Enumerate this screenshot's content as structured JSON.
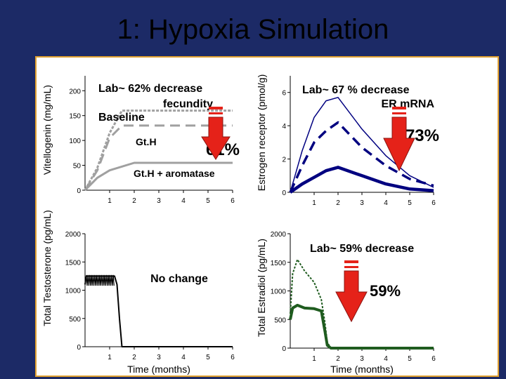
{
  "slide": {
    "title": "1: Hypoxia Simulation"
  },
  "colors": {
    "background": "#1c2a66",
    "panel_border": "#e0a030",
    "baseline": "#a0a0a0",
    "gth_aromatase": "#000080",
    "testosterone": "#000000",
    "estradiol": "#1f5c1f",
    "arrow": "#e52219"
  },
  "chart_data": [
    {
      "id": "vitellogenin",
      "type": "line",
      "ylabel": "Vitellogenin (mg/mL)",
      "xlabel": "",
      "x_ticks": [
        "1",
        "2",
        "3",
        "4",
        "5",
        "6"
      ],
      "y_ticks": [
        "0",
        "50",
        "100",
        "150",
        "200"
      ],
      "xlim": [
        0,
        6
      ],
      "ylim": [
        0,
        200
      ],
      "series": [
        {
          "name": "Baseline",
          "x": [
            0,
            0.5,
            1.0,
            1.5,
            6.0
          ],
          "y": [
            0,
            45,
            115,
            160,
            160
          ]
        },
        {
          "name": "Gt.H",
          "x": [
            0,
            0.5,
            1.0,
            1.5,
            6.0
          ],
          "y": [
            0,
            40,
            105,
            130,
            130
          ]
        },
        {
          "name": "Gt.H + aromatase",
          "x": [
            0,
            0.5,
            1.0,
            2.0,
            6.0
          ],
          "y": [
            0,
            25,
            40,
            55,
            55
          ]
        }
      ],
      "annotations": {
        "lab_line1": "Lab~ 62% decrease",
        "lab_line2": "fecundity",
        "percent": "61%"
      }
    },
    {
      "id": "estrogen_receptor",
      "type": "line",
      "ylabel": "Estrogen receptor (pmol/g)",
      "xlabel": "",
      "x_ticks": [
        "1",
        "2",
        "3",
        "4",
        "5",
        "6"
      ],
      "y_ticks": [
        "0",
        "2",
        "4",
        "6"
      ],
      "xlim": [
        0,
        6
      ],
      "ylim": [
        0,
        7
      ],
      "series": [
        {
          "name": "Baseline",
          "x": [
            0,
            0.5,
            1.0,
            1.5,
            2.0,
            3.0,
            4.0,
            5.0,
            6.0
          ],
          "y": [
            0,
            2.5,
            4.5,
            5.5,
            5.7,
            3.8,
            2.2,
            1.0,
            0.3
          ]
        },
        {
          "name": "Gt.H",
          "x": [
            0,
            0.5,
            1.0,
            1.5,
            2.0,
            3.0,
            4.0,
            5.0,
            6.0
          ],
          "y": [
            0,
            1.6,
            3.0,
            3.7,
            4.2,
            2.7,
            1.6,
            0.8,
            0.4
          ]
        },
        {
          "name": "Gt.H + aromatase",
          "x": [
            0,
            0.5,
            1.0,
            1.5,
            2.0,
            3.0,
            4.0,
            5.0,
            6.0
          ],
          "y": [
            0,
            0.5,
            0.9,
            1.3,
            1.5,
            1.0,
            0.5,
            0.2,
            0.1
          ]
        }
      ],
      "annotations": {
        "lab_line1": "Lab~ 67 % decrease",
        "lab_line2": "ER mRNA",
        "percent": "73%"
      }
    },
    {
      "id": "testosterone",
      "type": "line",
      "ylabel": "Total Testosterone (pg/mL)",
      "xlabel": "Time (months)",
      "x_ticks": [
        "1",
        "2",
        "3",
        "4",
        "5",
        "6"
      ],
      "y_ticks": [
        "0",
        "500",
        "1000",
        "1500",
        "2000"
      ],
      "xlim": [
        0,
        6
      ],
      "ylim": [
        0,
        2000
      ],
      "series": [
        {
          "name": "Total Testosterone",
          "x": [
            0,
            0.05,
            1.2,
            1.3,
            1.4,
            1.5,
            6.0
          ],
          "y": [
            1100,
            1250,
            1250,
            1100,
            500,
            0,
            0
          ]
        }
      ],
      "annotations": {
        "note": "No change"
      }
    },
    {
      "id": "estradiol",
      "type": "line",
      "ylabel": "Total Estradiol (pg/mL)",
      "xlabel": "Time (months)",
      "x_ticks": [
        "1",
        "2",
        "3",
        "4",
        "5",
        "6"
      ],
      "y_ticks": [
        "0",
        "500",
        "1000",
        "1500",
        "2000"
      ],
      "xlim": [
        0,
        6
      ],
      "ylim": [
        0,
        2000
      ],
      "series": [
        {
          "name": "Gt.H",
          "x": [
            0,
            0.1,
            0.3,
            0.6,
            1.0,
            1.3,
            1.45,
            1.55,
            1.7,
            6.0
          ],
          "y": [
            600,
            1300,
            1550,
            1350,
            1150,
            850,
            450,
            100,
            0,
            0
          ]
        },
        {
          "name": "Gt.H + aromatase",
          "x": [
            0,
            0.1,
            0.3,
            0.6,
            1.0,
            1.3,
            1.45,
            1.55,
            1.7,
            6.0
          ],
          "y": [
            500,
            700,
            750,
            700,
            690,
            650,
            300,
            50,
            0,
            0
          ]
        }
      ],
      "annotations": {
        "lab_line1": "Lab~ 59% decrease",
        "percent": "59%"
      }
    }
  ]
}
